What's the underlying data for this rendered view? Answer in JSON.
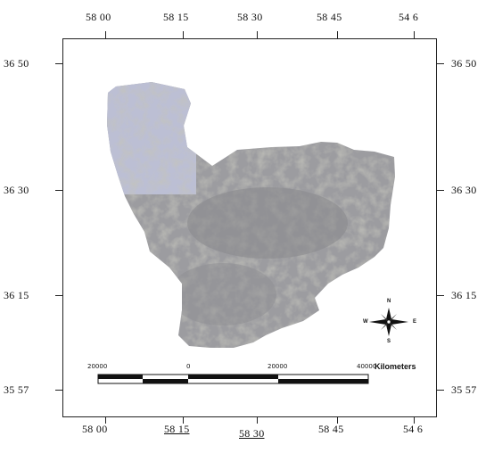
{
  "grid": {
    "top_labels": [
      "58 00",
      "58 15",
      "58 30",
      "58 45",
      "54 6"
    ],
    "bottom_labels": [
      "58 00",
      "58 15",
      "58 30",
      "58 45",
      "54 6"
    ],
    "left_labels": [
      "36 50",
      "36 30",
      "36 15",
      "35 57"
    ],
    "right_labels": [
      "36 50",
      "36 30",
      "36 15",
      "35 57"
    ]
  },
  "scale_bar": {
    "ticks": [
      "20000",
      "0",
      "20000",
      "40000"
    ],
    "unit": "Kilometers"
  },
  "north_arrow": {
    "n": "N",
    "s": "S",
    "e": "E",
    "w": "W"
  }
}
